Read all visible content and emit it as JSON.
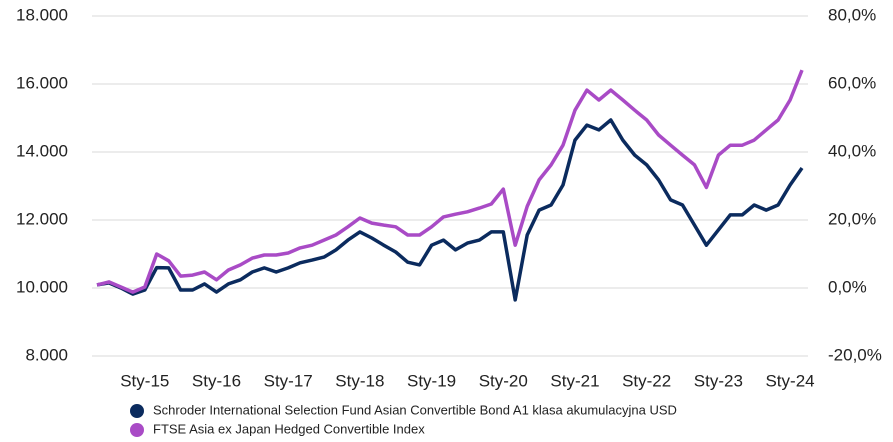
{
  "chart_data": {
    "type": "line",
    "categories": [
      null,
      null,
      null,
      null,
      "Sty-15",
      null,
      null,
      null,
      null,
      null,
      "Sty-16",
      null,
      null,
      null,
      null,
      null,
      "Sty-17",
      null,
      null,
      null,
      null,
      null,
      "Sty-18",
      null,
      null,
      null,
      null,
      null,
      "Sty-19",
      null,
      null,
      null,
      null,
      null,
      "Sty-20",
      null,
      null,
      null,
      null,
      null,
      "Sty-21",
      null,
      null,
      null,
      null,
      null,
      "Sty-22",
      null,
      null,
      null,
      null,
      null,
      "Sty-23",
      null,
      null,
      null,
      null,
      null,
      "Sty-24",
      null
    ],
    "series": [
      {
        "name": "Schroder International Selection Fund Asian Convertible Bond A1 klasa akumulacyjna USD",
        "color": "#0b2b5e",
        "values": [
          10090,
          10150,
          10000,
          9820,
          9940,
          10600,
          10590,
          9940,
          9940,
          10120,
          9880,
          10120,
          10240,
          10470,
          10590,
          10470,
          10590,
          10740,
          10820,
          10910,
          11120,
          11410,
          11650,
          11470,
          11260,
          11060,
          10760,
          10680,
          11260,
          11410,
          11120,
          11320,
          11410,
          11650,
          11650,
          9650,
          11560,
          12290,
          12440,
          13030,
          14350,
          14790,
          14650,
          14940,
          14350,
          13910,
          13620,
          13180,
          12590,
          12440,
          11850,
          11260,
          11710,
          12150,
          12150,
          12440,
          12290,
          12440,
          13030,
          13530
        ]
      },
      {
        "name": "FTSE Asia ex Japan Hedged Convertible Index",
        "color": "#a94bc6",
        "values": [
          10090,
          10180,
          10030,
          9880,
          10030,
          11000,
          10800,
          10350,
          10380,
          10470,
          10240,
          10530,
          10680,
          10880,
          10970,
          10970,
          11030,
          11180,
          11260,
          11410,
          11560,
          11800,
          12060,
          11910,
          11850,
          11800,
          11560,
          11560,
          11800,
          12090,
          12170,
          12240,
          12350,
          12470,
          12910,
          11260,
          12400,
          13180,
          13620,
          14200,
          15230,
          15820,
          15530,
          15820,
          15530,
          15230,
          14940,
          14500,
          14200,
          13910,
          13620,
          12960,
          13910,
          14200,
          14200,
          14350,
          14650,
          14940,
          15530,
          16410
        ]
      }
    ],
    "ylim": [
      8000,
      18000
    ],
    "yticks": [
      {
        "value": 8000,
        "label": "8.000"
      },
      {
        "value": 10000,
        "label": "10.000"
      },
      {
        "value": 12000,
        "label": "12.000"
      },
      {
        "value": 14000,
        "label": "14.000"
      },
      {
        "value": 16000,
        "label": "16.000"
      },
      {
        "value": 18000,
        "label": "18.000"
      }
    ],
    "y2lim": [
      -20,
      80
    ],
    "y2ticks": [
      {
        "value": -20,
        "label": "-20,0%"
      },
      {
        "value": 0,
        "label": "0,0%"
      },
      {
        "value": 20,
        "label": "20,0%"
      },
      {
        "value": 40,
        "label": "40,0%"
      },
      {
        "value": 60,
        "label": "60,0%"
      },
      {
        "value": 80,
        "label": "80,0%"
      }
    ],
    "grid": true,
    "legend": "bottom"
  }
}
